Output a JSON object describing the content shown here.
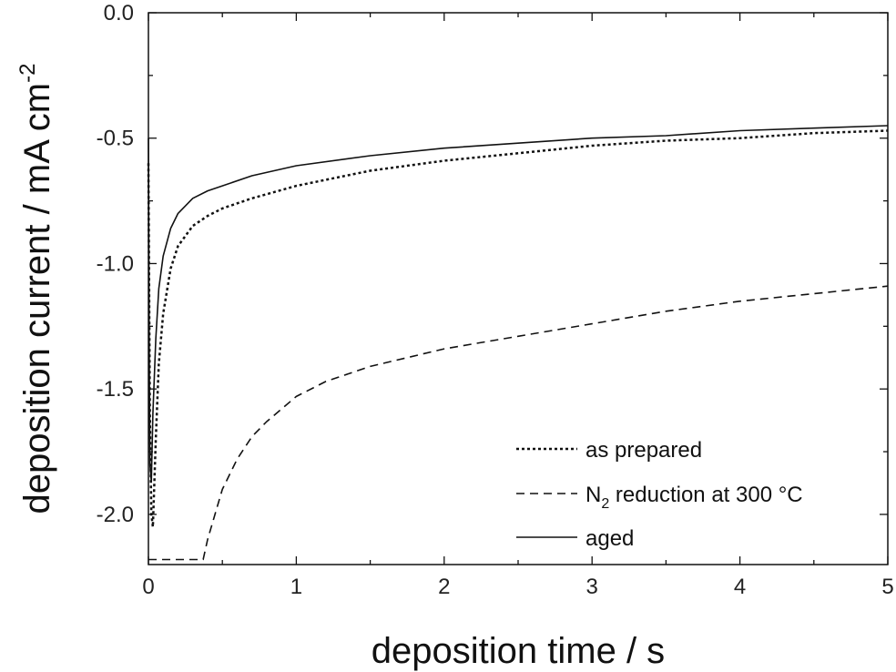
{
  "chart_data": {
    "type": "line",
    "title": "",
    "xlabel": "deposition time / s",
    "ylabel_main": "deposition current / mA cm",
    "ylabel_sup": "-2",
    "xlim": [
      0,
      5
    ],
    "ylim": [
      -2.2,
      0.0
    ],
    "x_ticks": [
      0,
      1,
      2,
      3,
      4,
      5
    ],
    "x_tick_labels": [
      "0",
      "1",
      "2",
      "3",
      "4",
      "5"
    ],
    "y_ticks": [
      0.0,
      -0.5,
      -1.0,
      -1.5,
      -2.0
    ],
    "y_tick_labels": [
      "0.0",
      "-0.5",
      "-1.0",
      "-1.5",
      "-2.0"
    ],
    "grid": false,
    "legend_position": "bottom-right",
    "series": [
      {
        "name": "as prepared",
        "style": "dotted",
        "color": "#111111",
        "x": [
          0,
          0.01,
          0.02,
          0.03,
          0.05,
          0.07,
          0.1,
          0.15,
          0.2,
          0.3,
          0.4,
          0.5,
          0.7,
          1.0,
          1.5,
          2.0,
          2.5,
          3.0,
          3.5,
          4.0,
          4.5,
          5.0
        ],
        "y": [
          -0.6,
          -1.6,
          -2.0,
          -2.05,
          -1.7,
          -1.4,
          -1.2,
          -1.02,
          -0.93,
          -0.85,
          -0.81,
          -0.78,
          -0.74,
          -0.69,
          -0.63,
          -0.59,
          -0.56,
          -0.53,
          -0.51,
          -0.5,
          -0.48,
          -0.47
        ]
      },
      {
        "name_main": "N",
        "name_sub": "2",
        "name_rest": " reduction at 300 °C",
        "style": "dashed",
        "color": "#111111",
        "x": [
          0,
          0.37,
          0.4,
          0.45,
          0.5,
          0.6,
          0.7,
          0.8,
          1.0,
          1.2,
          1.5,
          2.0,
          2.5,
          3.0,
          3.5,
          4.0,
          4.5,
          5.0
        ],
        "y": [
          -2.18,
          -2.18,
          -2.1,
          -2.0,
          -1.9,
          -1.78,
          -1.69,
          -1.63,
          -1.53,
          -1.47,
          -1.41,
          -1.34,
          -1.29,
          -1.24,
          -1.19,
          -1.15,
          -1.12,
          -1.09
        ]
      },
      {
        "name": "aged",
        "style": "solid",
        "color": "#111111",
        "x": [
          0,
          0.005,
          0.01,
          0.02,
          0.03,
          0.05,
          0.07,
          0.1,
          0.15,
          0.2,
          0.3,
          0.4,
          0.5,
          0.7,
          1.0,
          1.5,
          2.0,
          2.5,
          3.0,
          3.5,
          4.0,
          4.5,
          5.0
        ],
        "y": [
          -0.5,
          -1.3,
          -1.8,
          -1.87,
          -1.6,
          -1.3,
          -1.1,
          -0.97,
          -0.86,
          -0.8,
          -0.74,
          -0.71,
          -0.69,
          -0.65,
          -0.61,
          -0.57,
          -0.54,
          -0.52,
          -0.5,
          -0.49,
          -0.47,
          -0.46,
          -0.45
        ]
      }
    ]
  }
}
